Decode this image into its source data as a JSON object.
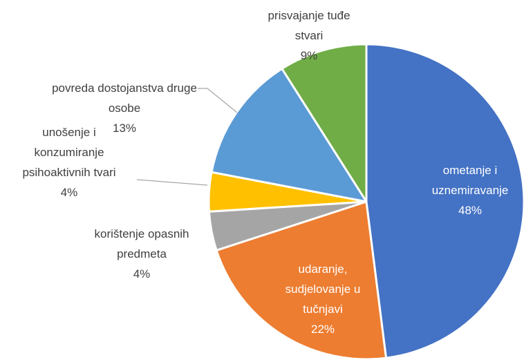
{
  "chart_data": {
    "type": "pie",
    "categories": [
      "ometanje i uznemiravanje",
      "udaranje, sudjelovanje u tučnjavi",
      "korištenje opasnih predmeta",
      "unošenje i konzumiranje psihoaktivnih tvari",
      "povreda dostojanstva druge osobe",
      "prisvajanje tuđe stvari"
    ],
    "values": [
      48,
      22,
      4,
      4,
      13,
      9
    ],
    "value_labels": [
      "48%",
      "22%",
      "4%",
      "4%",
      "13%",
      "9%"
    ],
    "colors": [
      "#4472c4",
      "#ed7d31",
      "#a5a5a5",
      "#ffc000",
      "#5b9bd5",
      "#70ad47"
    ]
  }
}
